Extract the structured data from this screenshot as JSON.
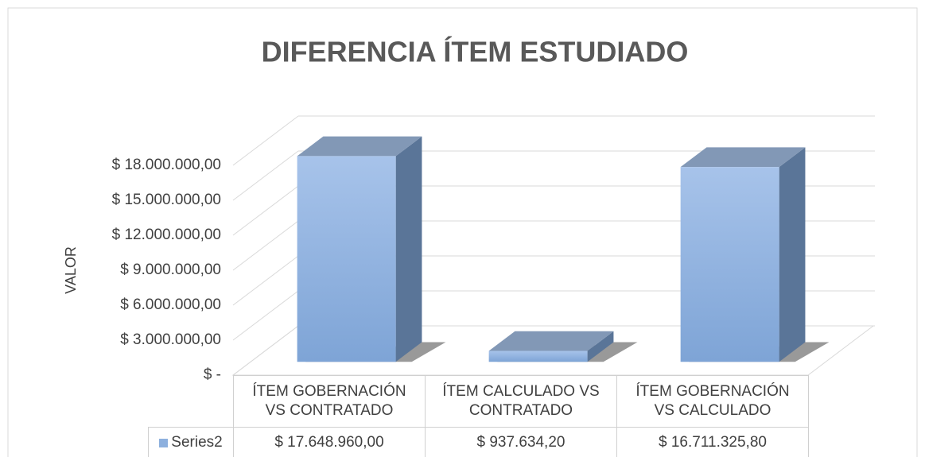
{
  "chart_data": {
    "type": "bar3d",
    "title": "DIFERENCIA ÍTEM ESTUDIADO",
    "ylabel": "VALOR",
    "categories": [
      "ÍTEM GOBERNACIÓN VS CONTRATADO",
      "ÍTEM CALCULADO VS CONTRATADO",
      "ÍTEM GOBERNACIÓN VS CALCULADO"
    ],
    "series": [
      {
        "name": "Series2",
        "color": "#8db0de",
        "values": [
          17648960,
          937634.2,
          16711325.8
        ],
        "value_labels": [
          "$ 17.648.960,00",
          "$ 937.634,20",
          "$ 16.711.325,80"
        ]
      }
    ],
    "ylim": [
      0,
      18000000
    ],
    "yticks": [
      {
        "value": 0,
        "label": "$ -"
      },
      {
        "value": 3000000,
        "label": "$ 3.000.000,00"
      },
      {
        "value": 6000000,
        "label": "$ 6.000.000,00"
      },
      {
        "value": 9000000,
        "label": "$ 9.000.000,00"
      },
      {
        "value": 12000000,
        "label": "$ 12.000.000,00"
      },
      {
        "value": 15000000,
        "label": "$ 15.000.000,00"
      },
      {
        "value": 18000000,
        "label": "$ 18.000.000,00"
      }
    ],
    "grid": true
  }
}
